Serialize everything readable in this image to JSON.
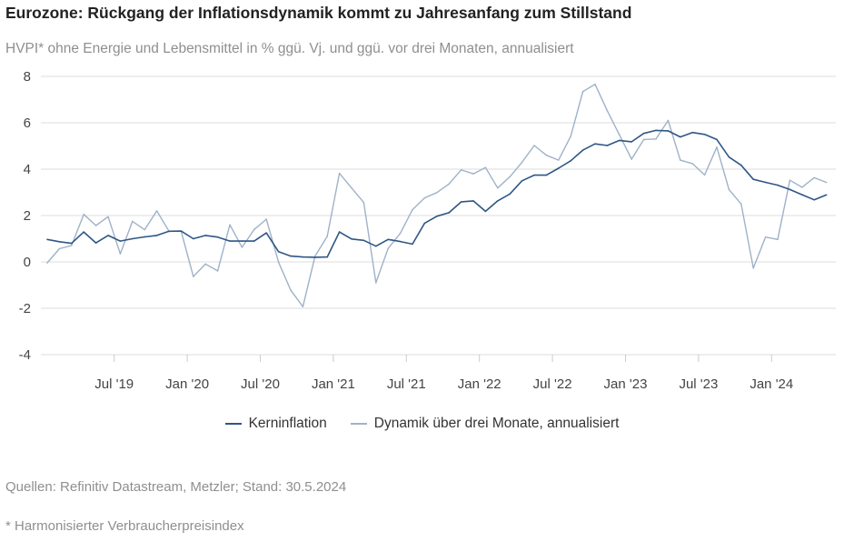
{
  "header": {
    "title": "Eurozone: Rückgang der Inflationsdynamik kommt zu Jahresanfang zum Stillstand",
    "subtitle": "HVPI* ohne Energie und Lebensmittel in % ggü. Vj. und ggü. vor drei Monaten, annualisiert"
  },
  "footer": {
    "source": "Quellen: Refinitiv Datastream, Metzler; Stand: 30.5.2024",
    "footnote": "* Harmonisierter Verbraucherpreisindex"
  },
  "chart_data": {
    "type": "line",
    "title": "Eurozone: Rückgang der Inflationsdynamik kommt zu Jahresanfang zum Stillstand",
    "subtitle": "HVPI* ohne Energie und Lebensmittel in % ggü. Vj. und ggü. vor drei Monaten, annualisiert",
    "x_start": "2019-01",
    "x_end": "2024-05",
    "x_ticks": [
      {
        "label": "Jul '19",
        "month": "2019-07"
      },
      {
        "label": "Jan '20",
        "month": "2020-01"
      },
      {
        "label": "Jul '20",
        "month": "2020-07"
      },
      {
        "label": "Jan '21",
        "month": "2021-01"
      },
      {
        "label": "Jul '21",
        "month": "2021-07"
      },
      {
        "label": "Jan '22",
        "month": "2022-01"
      },
      {
        "label": "Jul '22",
        "month": "2022-07"
      },
      {
        "label": "Jan '23",
        "month": "2023-01"
      },
      {
        "label": "Jul '23",
        "month": "2023-07"
      },
      {
        "label": "Jan '24",
        "month": "2024-01"
      }
    ],
    "y_ticks": [
      8,
      6,
      4,
      2,
      0,
      -2,
      -4
    ],
    "ylim": [
      -4,
      8
    ],
    "grid": "horizontal",
    "legend": "bottom",
    "series": [
      {
        "name": "Kerninflation",
        "color": "#2f5785",
        "values": [
          0.97,
          0.87,
          0.8,
          1.29,
          0.82,
          1.14,
          0.9,
          1.0,
          1.08,
          1.14,
          1.32,
          1.33,
          1.0,
          1.14,
          1.07,
          0.9,
          0.9,
          0.9,
          1.25,
          0.44,
          0.25,
          0.21,
          0.2,
          0.21,
          1.29,
          0.99,
          0.93,
          0.68,
          0.97,
          0.88,
          0.77,
          1.67,
          1.97,
          2.12,
          2.59,
          2.63,
          2.18,
          2.63,
          2.93,
          3.5,
          3.74,
          3.74,
          4.04,
          4.36,
          4.82,
          5.09,
          5.02,
          5.24,
          5.18,
          5.54,
          5.67,
          5.65,
          5.39,
          5.58,
          5.5,
          5.28,
          4.52,
          4.17,
          3.56,
          3.43,
          3.31,
          3.12,
          2.9,
          2.68,
          2.89
        ]
      },
      {
        "name": "Dynamik über drei Monate, annualisiert",
        "color": "#9fb2c8",
        "values": [
          -0.04,
          0.57,
          0.71,
          2.05,
          1.57,
          1.95,
          0.35,
          1.75,
          1.39,
          2.2,
          1.32,
          1.32,
          -0.63,
          -0.09,
          -0.39,
          1.6,
          0.63,
          1.4,
          1.84,
          -0.01,
          -1.22,
          -1.93,
          0.25,
          1.1,
          3.82,
          3.19,
          2.56,
          -0.9,
          0.58,
          1.23,
          2.25,
          2.76,
          2.99,
          3.36,
          3.97,
          3.8,
          4.07,
          3.19,
          3.67,
          4.3,
          5.02,
          4.6,
          4.39,
          5.42,
          7.35,
          7.66,
          6.52,
          5.48,
          4.43,
          5.28,
          5.3,
          6.1,
          4.39,
          4.24,
          3.75,
          4.95,
          3.12,
          2.5,
          -0.27,
          1.07,
          0.97,
          3.52,
          3.22,
          3.63,
          3.43
        ]
      }
    ]
  }
}
